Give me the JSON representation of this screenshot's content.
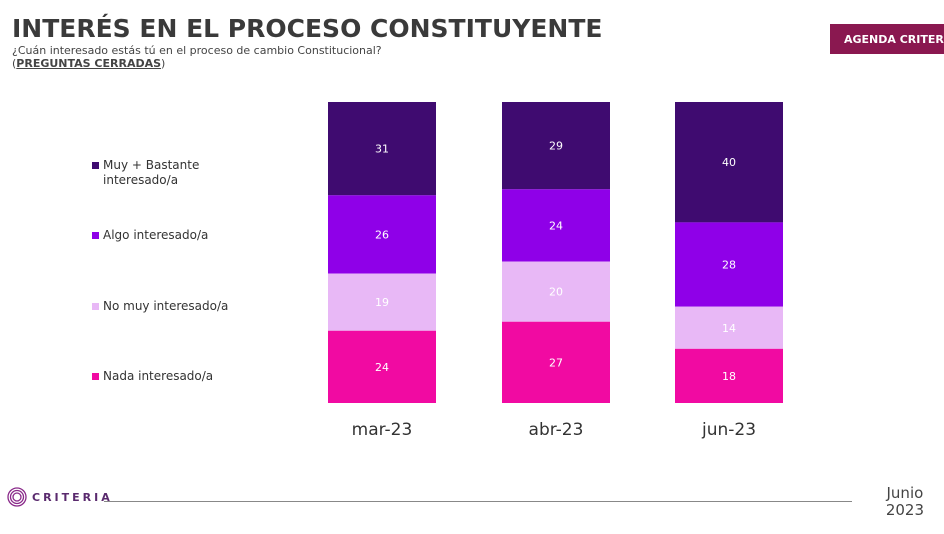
{
  "header": {
    "title": "INTERÉS EN EL PROCESO CONSTITUYENTE",
    "subtitle": "¿Cuán interesado estás tú en el proceso de cambio Constitucional?",
    "note_open": "(",
    "note": "PREGUNTAS CERRADAS",
    "note_close": ")"
  },
  "badge": {
    "label": "AGENDA CRITERIA"
  },
  "footer": {
    "brand": "CRITERIA",
    "date_month": "Junio",
    "date_year": "2023"
  },
  "colors": {
    "series": [
      "#3f0b70",
      "#8f00e8",
      "#e8b8f6",
      "#f10aa2"
    ],
    "logo": "#8a2a8a"
  },
  "chart_data": {
    "type": "bar",
    "stacked": true,
    "categories": [
      "mar-23",
      "abr-23",
      "jun-23"
    ],
    "series": [
      {
        "name": "Muy + Bastante interesado/a",
        "values": [
          31,
          29,
          40
        ]
      },
      {
        "name": "Algo interesado/a",
        "values": [
          26,
          24,
          28
        ]
      },
      {
        "name": "No muy interesado/a",
        "values": [
          19,
          20,
          14
        ]
      },
      {
        "name": "Nada interesado/a",
        "values": [
          24,
          27,
          18
        ]
      }
    ],
    "legend_position": "left",
    "grid": false,
    "ylim": [
      0,
      100
    ]
  }
}
